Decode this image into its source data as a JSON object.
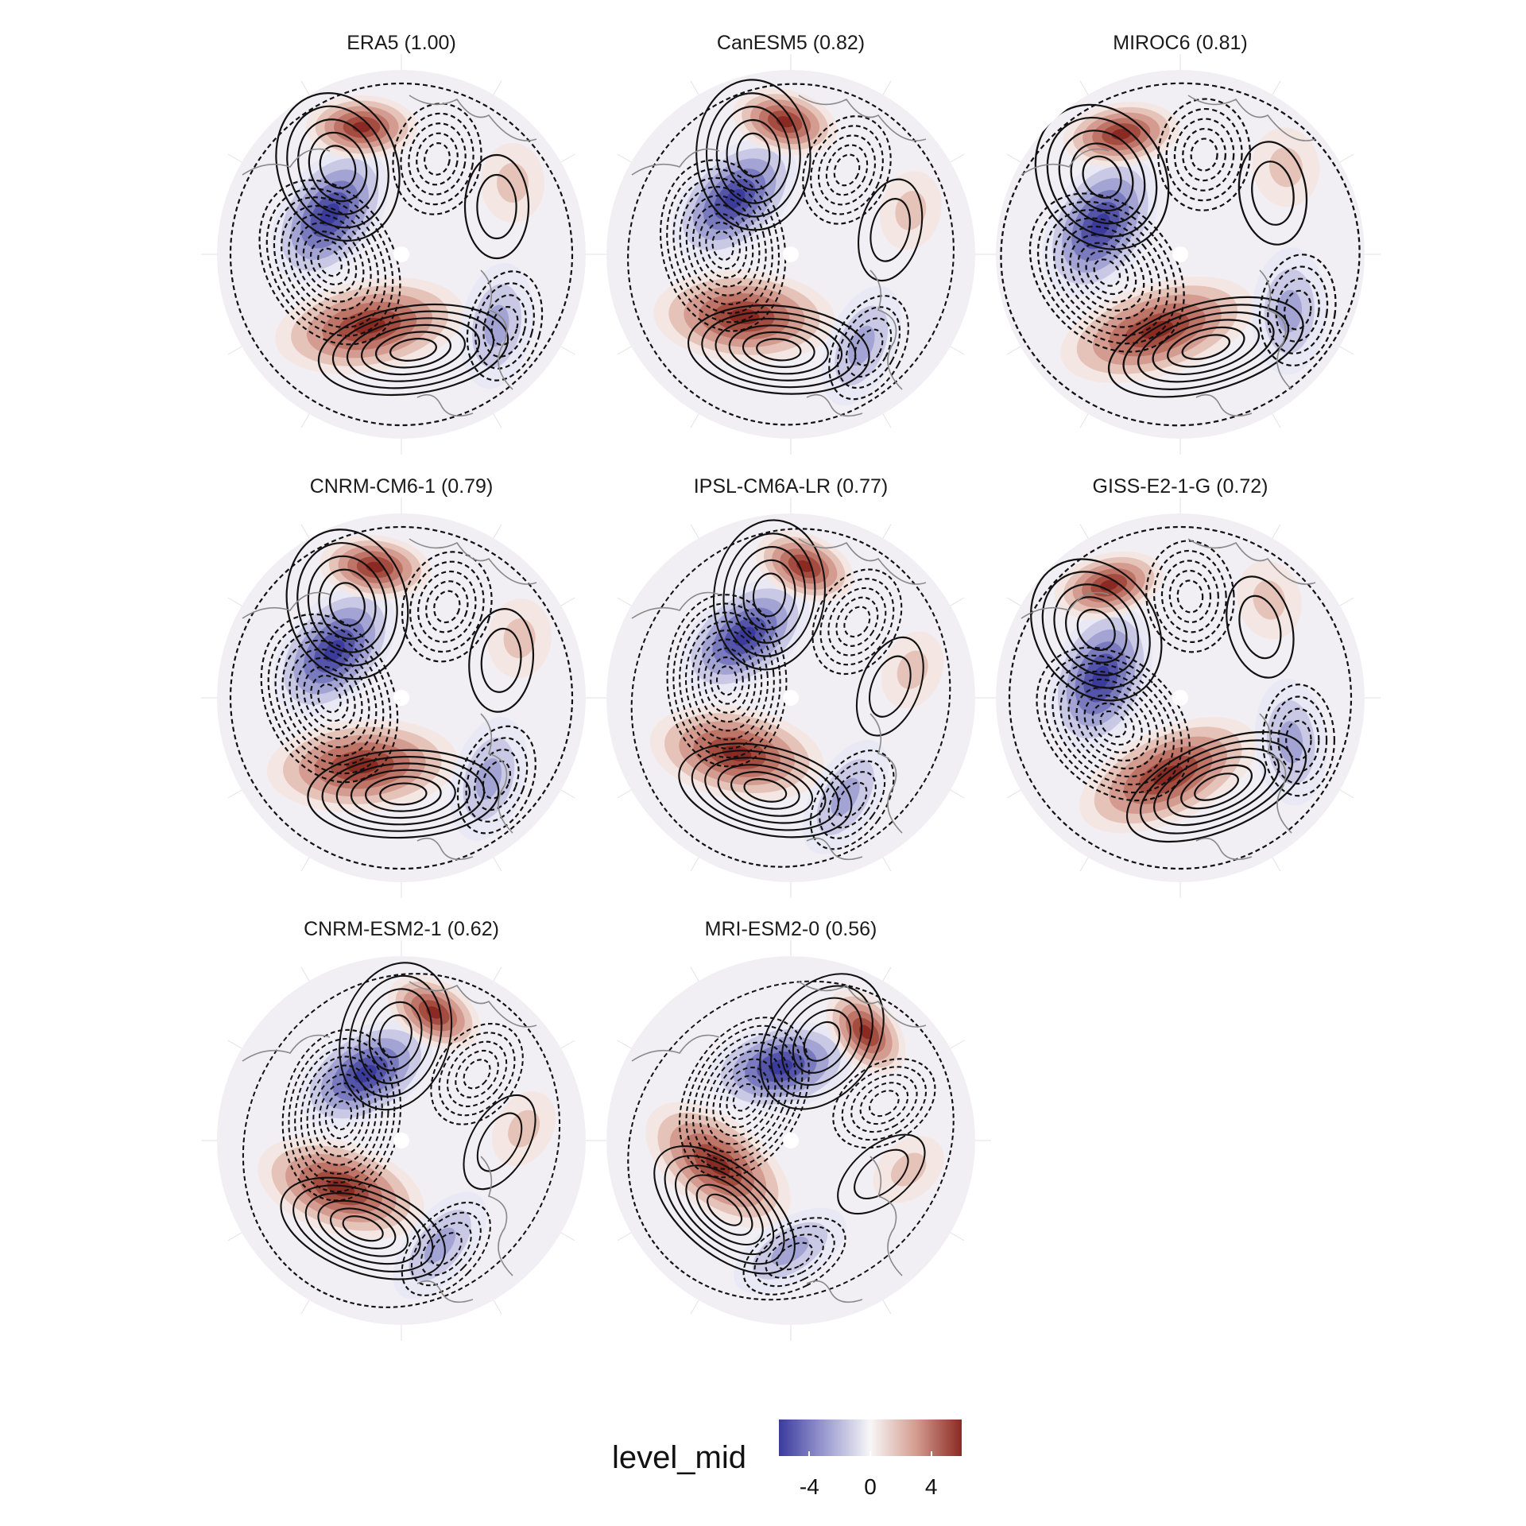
{
  "panels": [
    {
      "id": "era5",
      "title": "ERA5 (1.00)"
    },
    {
      "id": "canesm5",
      "title": "CanESM5 (0.82)"
    },
    {
      "id": "miroc6",
      "title": "MIROC6 (0.81)"
    },
    {
      "id": "cnrm-cm6-1",
      "title": "CNRM-CM6-1 (0.79)"
    },
    {
      "id": "ipsl-cm6a-lr",
      "title": "IPSL-CM6A-LR (0.77)"
    },
    {
      "id": "giss-e2-1-g",
      "title": "GISS-E2-1-G (0.72)"
    },
    {
      "id": "cnrm-esm2-1",
      "title": "CNRM-ESM2-1 (0.62)"
    },
    {
      "id": "mri-esm2-0",
      "title": "MRI-ESM2-0 (0.56)"
    }
  ],
  "legend": {
    "title": "level_mid",
    "ticks": [
      "-4",
      "0",
      "4"
    ],
    "tick_values": [
      -4,
      0,
      4
    ],
    "range": [
      -6,
      6
    ],
    "colors": {
      "low": "#3b3b9e",
      "mid": "#f7f7f7",
      "high": "#8b2a22"
    }
  },
  "style": {
    "negative_contour": "dashed",
    "positive_contour": "solid",
    "coastline_color": "#8a8a8a",
    "graticule_color": "#dcdcdc"
  }
}
